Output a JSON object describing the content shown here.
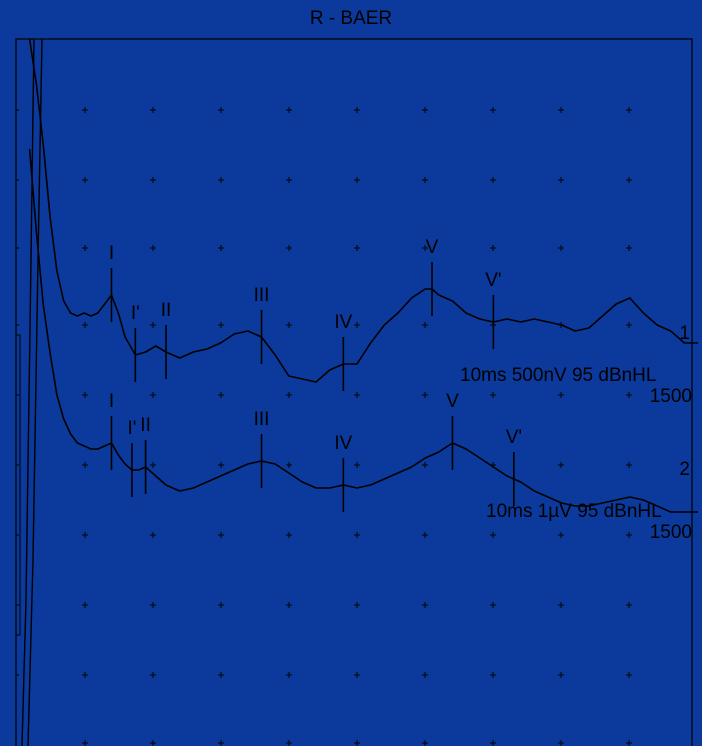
{
  "title": "R  - BAER",
  "colors": {
    "background": "#0b3a9c",
    "trace": "#000000"
  },
  "chart_data": {
    "type": "line",
    "title": "R  - BAER",
    "xlim": [
      0,
      10
    ],
    "grid": true,
    "series": [
      {
        "name": "1",
        "label": "10ms 500nV 95 dBnHL",
        "count": "1500",
        "peaks": [
          {
            "label": "I",
            "x": 1.4
          },
          {
            "label": "I'",
            "x": 1.75
          },
          {
            "label": "II",
            "x": 2.2
          },
          {
            "label": "III",
            "x": 3.6
          },
          {
            "label": "IV",
            "x": 4.8
          },
          {
            "label": "V",
            "x": 6.1
          },
          {
            "label": "V'",
            "x": 7.0
          }
        ],
        "x": [
          0.2,
          0.3,
          0.4,
          0.5,
          0.6,
          0.7,
          0.8,
          0.9,
          1.0,
          1.1,
          1.2,
          1.3,
          1.4,
          1.5,
          1.6,
          1.75,
          1.9,
          2.05,
          2.2,
          2.4,
          2.6,
          2.8,
          3.0,
          3.2,
          3.4,
          3.6,
          3.8,
          4.0,
          4.2,
          4.4,
          4.6,
          4.8,
          5.0,
          5.2,
          5.4,
          5.6,
          5.8,
          6.0,
          6.1,
          6.2,
          6.4,
          6.6,
          6.8,
          7.0,
          7.2,
          7.4,
          7.6,
          7.8,
          8.0,
          8.2,
          8.4,
          8.6,
          8.8,
          9.0,
          9.2,
          9.4,
          9.6,
          9.8,
          10.0
        ],
        "y": [
          6.0,
          4.4,
          3.4,
          2.2,
          1.3,
          0.8,
          0.6,
          0.55,
          0.6,
          0.55,
          0.6,
          0.75,
          0.9,
          0.6,
          0.2,
          -0.1,
          -0.05,
          0.05,
          -0.05,
          -0.15,
          -0.05,
          0.0,
          0.1,
          0.25,
          0.3,
          0.2,
          -0.1,
          -0.45,
          -0.5,
          -0.55,
          -0.35,
          -0.25,
          -0.25,
          0.1,
          0.4,
          0.6,
          0.85,
          1.0,
          1.0,
          0.9,
          0.8,
          0.6,
          0.5,
          0.45,
          0.5,
          0.45,
          0.5,
          0.45,
          0.4,
          0.3,
          0.35,
          0.55,
          0.75,
          0.85,
          0.6,
          0.4,
          0.3,
          0.1,
          0.1
        ]
      },
      {
        "name": "2",
        "label": "10ms 1µV 95 dBnHL",
        "count": "1500",
        "peaks": [
          {
            "label": "I",
            "x": 1.4
          },
          {
            "label": "I'",
            "x": 1.7
          },
          {
            "label": "II",
            "x": 1.9
          },
          {
            "label": "III",
            "x": 3.6
          },
          {
            "label": "IV",
            "x": 4.8
          },
          {
            "label": "V",
            "x": 6.4
          },
          {
            "label": "V'",
            "x": 7.3
          }
        ],
        "x": [
          0.2,
          0.3,
          0.4,
          0.5,
          0.6,
          0.7,
          0.8,
          0.9,
          1.0,
          1.1,
          1.2,
          1.3,
          1.4,
          1.5,
          1.6,
          1.7,
          1.8,
          1.9,
          2.0,
          2.2,
          2.4,
          2.6,
          2.8,
          3.0,
          3.2,
          3.4,
          3.6,
          3.8,
          4.0,
          4.2,
          4.4,
          4.6,
          4.8,
          5.0,
          5.2,
          5.4,
          5.6,
          5.8,
          6.0,
          6.2,
          6.4,
          6.6,
          6.8,
          7.0,
          7.2,
          7.4,
          7.6,
          7.8,
          8.0,
          8.2,
          8.4,
          8.6,
          8.8,
          9.0,
          9.2,
          9.4,
          9.6,
          9.8,
          10.0
        ],
        "y": [
          5.6,
          4.2,
          3.0,
          2.2,
          1.5,
          1.1,
          0.85,
          0.7,
          0.65,
          0.6,
          0.6,
          0.65,
          0.7,
          0.5,
          0.35,
          0.25,
          0.25,
          0.3,
          0.2,
          0.0,
          -0.1,
          -0.05,
          0.05,
          0.15,
          0.25,
          0.35,
          0.4,
          0.35,
          0.2,
          0.05,
          -0.05,
          -0.05,
          0.0,
          -0.05,
          0.0,
          0.1,
          0.2,
          0.3,
          0.45,
          0.55,
          0.7,
          0.6,
          0.45,
          0.3,
          0.15,
          0.05,
          -0.1,
          -0.2,
          -0.3,
          -0.35,
          -0.35,
          -0.3,
          -0.25,
          -0.2,
          -0.25,
          -0.35,
          -0.45,
          -0.45,
          -0.45
        ]
      }
    ]
  }
}
